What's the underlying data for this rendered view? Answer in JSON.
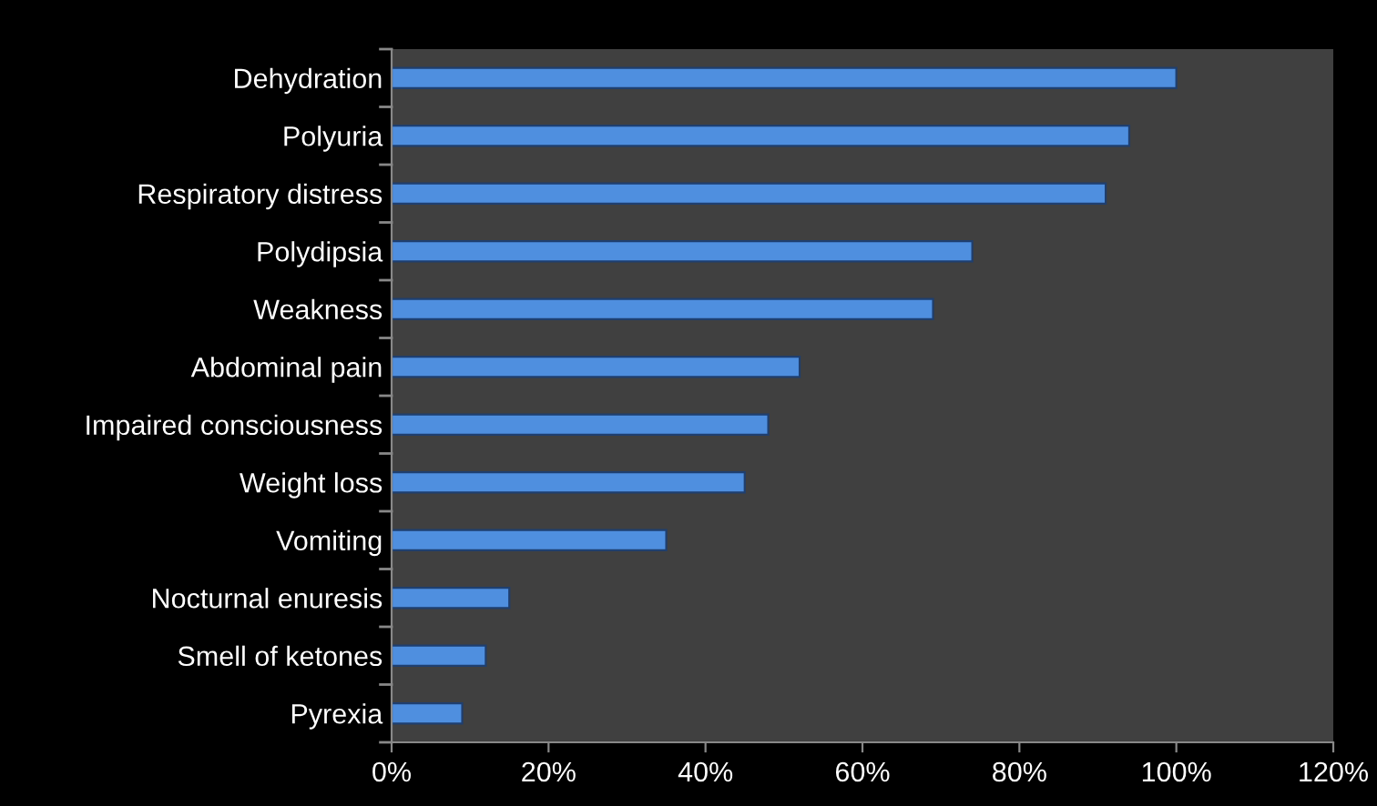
{
  "chart_data": {
    "type": "bar",
    "orientation": "horizontal",
    "categories": [
      "Dehydration",
      "Polyuria",
      "Respiratory distress",
      "Polydipsia",
      "Weakness",
      "Abdominal pain",
      "Impaired consciousness",
      "Weight loss",
      "Vomiting",
      "Nocturnal enuresis",
      "Smell of ketones",
      "Pyrexia"
    ],
    "values": [
      100,
      94,
      91,
      74,
      69,
      52,
      48,
      45,
      35,
      15,
      12,
      9
    ],
    "color": "#4f8fdf",
    "xlim": [
      0,
      120
    ],
    "xticks": [
      {
        "value": 0,
        "label": "0%"
      },
      {
        "value": 20,
        "label": "20%"
      },
      {
        "value": 40,
        "label": "40%"
      },
      {
        "value": 60,
        "label": "60%"
      },
      {
        "value": 80,
        "label": "80%"
      },
      {
        "value": 100,
        "label": "100%"
      },
      {
        "value": 120,
        "label": "120%"
      }
    ],
    "grid": false,
    "legend": false
  }
}
